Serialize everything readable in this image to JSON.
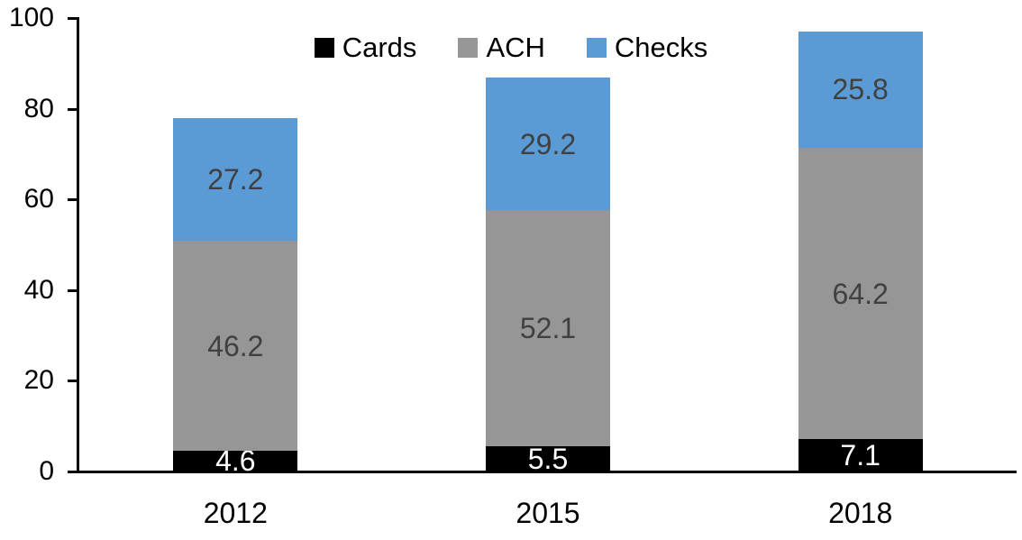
{
  "chart_data": {
    "type": "bar",
    "stacked": true,
    "title": "",
    "xlabel": "",
    "ylabel": "",
    "categories": [
      "2012",
      "2015",
      "2018"
    ],
    "series": [
      {
        "name": "Cards",
        "values": [
          4.6,
          5.5,
          7.1
        ],
        "color": "#000000",
        "label_color": "#ffffff"
      },
      {
        "name": "ACH",
        "values": [
          46.2,
          52.1,
          64.2
        ],
        "color": "#969696",
        "label_color": "#404040"
      },
      {
        "name": "Checks",
        "values": [
          27.2,
          29.2,
          25.8
        ],
        "color": "#5b9bd5",
        "label_color": "#404040"
      }
    ],
    "totals": [
      78.0,
      86.8,
      97.1
    ],
    "ylim": [
      0,
      100
    ],
    "yticks": [
      0,
      20,
      40,
      60,
      80,
      100
    ],
    "grid": false,
    "data_labels": true,
    "legend_position": "top-center",
    "axis_color": "#000000",
    "background": "#ffffff"
  }
}
